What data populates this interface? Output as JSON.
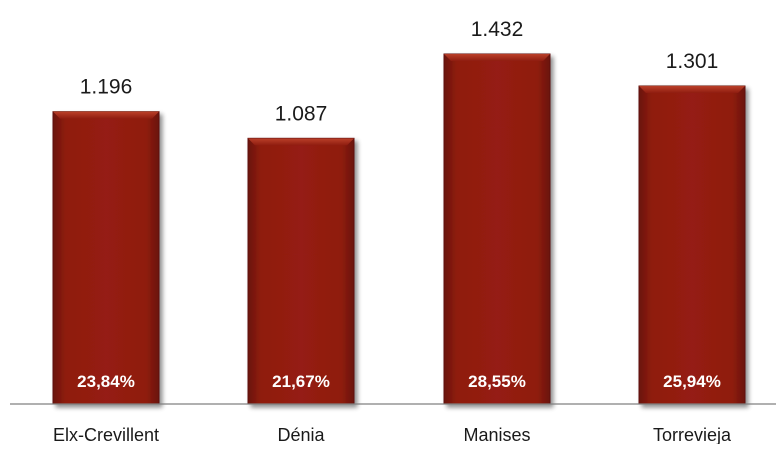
{
  "chart_data": {
    "type": "bar",
    "categories": [
      "Elx-Crevillent",
      "Dénia",
      "Manises",
      "Torrevieja"
    ],
    "values": [
      1196,
      1087,
      1432,
      1301
    ],
    "value_labels": [
      "1.196",
      "1.087",
      "1.432",
      "1.301"
    ],
    "share_labels": [
      "23,84%",
      "21,67%",
      "28,55%",
      "25,94%"
    ],
    "title": "",
    "xlabel": "",
    "ylabel": "",
    "ylim": [
      0,
      1500
    ],
    "grid": false,
    "legend": "none",
    "colors": {
      "bar": "#8B1A0E",
      "bar_edge": "#5e0f07",
      "bar_highlight": "#b03420",
      "share_text": "#ffffff",
      "value_text": "#1a1a1a",
      "axis": "#808080"
    }
  }
}
